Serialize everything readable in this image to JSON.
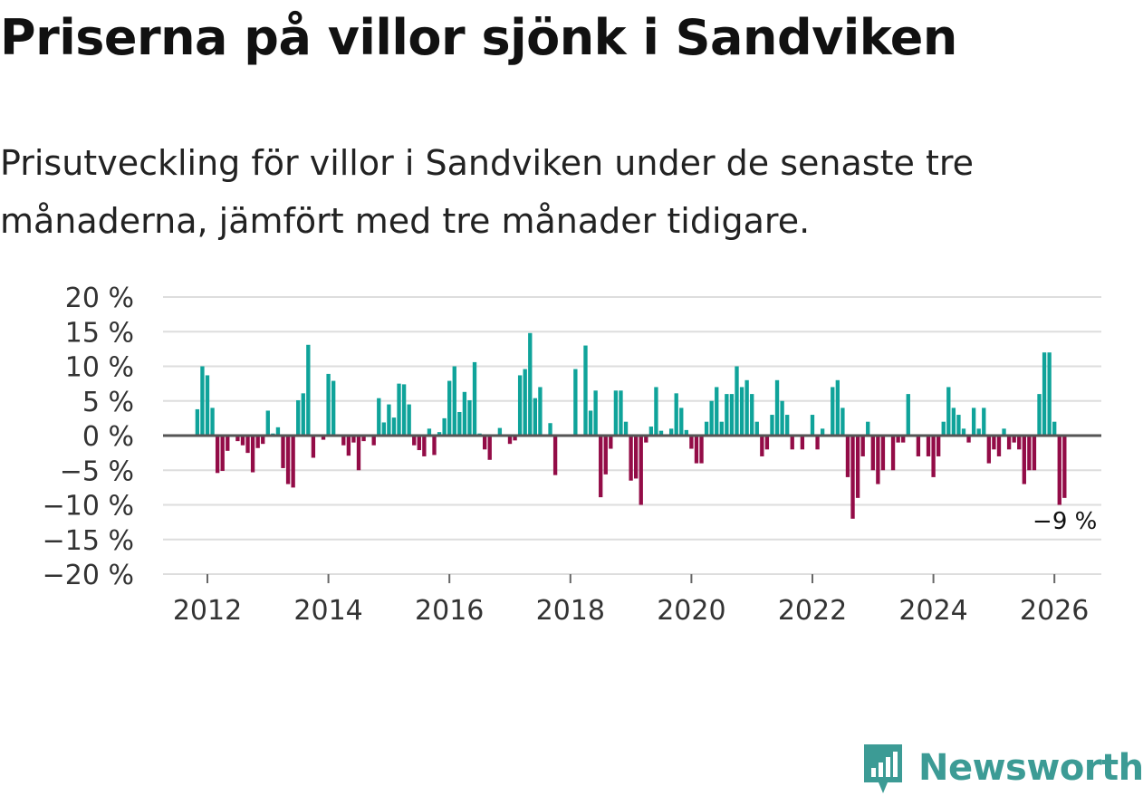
{
  "title": "Priserna på villor sjönk i Sandviken",
  "subtitle": "Prisutveckling för villor i Sandviken under de senaste tre månaderna, jämfört med tre månader tidigare.",
  "brand": {
    "name": "Newsworthy",
    "icon": "newsworthy-logo-icon",
    "color": "#3c9b95"
  },
  "colors": {
    "positive": "#0fa39a",
    "negative": "#930c47",
    "grid": "#dddddd",
    "zero": "#555555",
    "text": "#333333"
  },
  "chart_data": {
    "type": "bar",
    "title": "Priserna på villor sjönk i Sandviken",
    "xlabel": "",
    "ylabel": "",
    "ylim": [
      -20,
      20
    ],
    "yticks": [
      20,
      15,
      10,
      5,
      0,
      -5,
      -10,
      -15,
      -20
    ],
    "ytick_labels": [
      "20 %",
      "15 %",
      "10 %",
      "5 %",
      "0 %",
      "−5 %",
      "−10 %",
      "−15 %",
      "−20 %"
    ],
    "xticks": [
      2012,
      2014,
      2016,
      2018,
      2020,
      2022,
      2024,
      2026
    ],
    "xtick_labels": [
      "2012",
      "2014",
      "2016",
      "2018",
      "2020",
      "2022",
      "2024",
      "2026"
    ],
    "start": {
      "year": 2011,
      "month": 11
    },
    "annotation": {
      "text": "−9 %",
      "value": -9,
      "position": "last-bar"
    },
    "values": [
      3.8,
      10,
      8.7,
      4,
      -5.4,
      -5.1,
      -2.2,
      0,
      -0.8,
      -1.4,
      -2.5,
      -5.3,
      -1.8,
      -1.2,
      3.6,
      0.3,
      1.2,
      -4.7,
      -7,
      -7.5,
      5.1,
      6.1,
      13.1,
      -3.2,
      0,
      -0.6,
      8.9,
      7.9,
      0,
      -1.4,
      -2.9,
      -1,
      -5,
      -0.8,
      0,
      -1.4,
      5.4,
      1.9,
      4.5,
      2.6,
      7.5,
      7.4,
      4.5,
      -1.4,
      -2.1,
      -3,
      1,
      -2.8,
      0.5,
      2.5,
      7.9,
      10,
      3.4,
      6.3,
      5.1,
      10.6,
      0.3,
      -2,
      -3.5,
      0,
      1.1,
      0,
      -1.2,
      -0.7,
      8.7,
      9.6,
      14.8,
      5.4,
      7,
      0,
      1.8,
      -5.7,
      0,
      0,
      0,
      9.6,
      0,
      13,
      3.6,
      6.5,
      -8.9,
      -5.6,
      -1.9,
      6.5,
      6.5,
      2,
      -6.5,
      -6.2,
      -10,
      -1,
      1.3,
      7,
      0.7,
      0,
      1,
      6.1,
      4,
      0.8,
      -1.9,
      -4,
      -4,
      2,
      5,
      7,
      2,
      6,
      6,
      10,
      7,
      8,
      6,
      2,
      -3,
      -2,
      3,
      8,
      5,
      3,
      -2,
      0,
      -2,
      0,
      3,
      -2,
      1,
      0,
      7,
      8,
      4,
      -6,
      -12,
      -9,
      -3,
      2,
      -5,
      -7,
      -5,
      0,
      -5,
      -1,
      -1,
      6,
      0,
      -3,
      0,
      -3,
      -6,
      -3,
      2,
      7,
      4,
      3,
      1,
      -1,
      4,
      1,
      4,
      -4,
      -2,
      -3,
      1,
      -2,
      -1,
      -2,
      -7,
      -5,
      -5,
      6,
      12,
      12,
      2,
      -10,
      -9
    ]
  }
}
